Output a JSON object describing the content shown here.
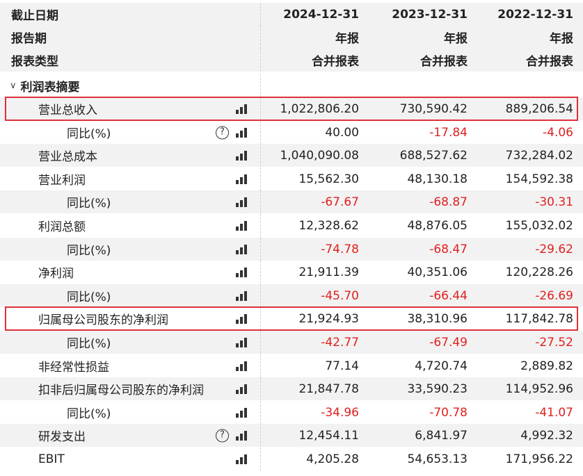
{
  "header": {
    "rows": [
      {
        "label": "截止日期",
        "values": [
          "2024-12-31",
          "2023-12-31",
          "2022-12-31"
        ]
      },
      {
        "label": "报告期",
        "values": [
          "年报",
          "年报",
          "年报"
        ]
      },
      {
        "label": "报表类型",
        "values": [
          "合并报表",
          "合并报表",
          "合并报表"
        ]
      }
    ]
  },
  "section": {
    "chevron": "∨",
    "title": "利润表摘要"
  },
  "rows": [
    {
      "label": "营业总收入",
      "level": 1,
      "help": false,
      "highlight": true,
      "values": [
        "1,022,806.20",
        "730,590.42",
        "889,206.54"
      ]
    },
    {
      "label": "同比(%)",
      "level": 2,
      "help": true,
      "help_text": "?",
      "values": [
        "40.00",
        "-17.84",
        "-4.06"
      ]
    },
    {
      "label": "营业总成本",
      "level": 1,
      "values": [
        "1,040,090.08",
        "688,527.62",
        "732,284.02"
      ]
    },
    {
      "label": "营业利润",
      "level": 1,
      "values": [
        "15,562.30",
        "48,130.18",
        "154,592.38"
      ]
    },
    {
      "label": "同比(%)",
      "level": 2,
      "values": [
        "-67.67",
        "-68.87",
        "-30.31"
      ]
    },
    {
      "label": "利润总额",
      "level": 1,
      "values": [
        "12,328.62",
        "48,876.05",
        "155,032.02"
      ]
    },
    {
      "label": "同比(%)",
      "level": 2,
      "values": [
        "-74.78",
        "-68.47",
        "-29.62"
      ]
    },
    {
      "label": "净利润",
      "level": 1,
      "values": [
        "21,911.39",
        "40,351.06",
        "120,228.26"
      ]
    },
    {
      "label": "同比(%)",
      "level": 2,
      "values": [
        "-45.70",
        "-66.44",
        "-26.69"
      ]
    },
    {
      "label": "归属母公司股东的净利润",
      "level": 1,
      "highlight": true,
      "values": [
        "21,924.93",
        "38,310.96",
        "117,842.78"
      ]
    },
    {
      "label": "同比(%)",
      "level": 2,
      "values": [
        "-42.77",
        "-67.49",
        "-27.52"
      ]
    },
    {
      "label": "非经常性损益",
      "level": 1,
      "values": [
        "77.14",
        "4,720.74",
        "2,889.82"
      ]
    },
    {
      "label": "扣非后归属母公司股东的净利润",
      "level": 1,
      "values": [
        "21,847.78",
        "33,590.23",
        "114,952.96"
      ]
    },
    {
      "label": "同比(%)",
      "level": 2,
      "values": [
        "-34.96",
        "-70.78",
        "-41.07"
      ]
    },
    {
      "label": "研发支出",
      "level": 1,
      "help": true,
      "help_text": "?",
      "values": [
        "12,454.11",
        "6,841.97",
        "4,992.32"
      ]
    },
    {
      "label": "EBIT",
      "level": 1,
      "values": [
        "4,205.28",
        "54,653.13",
        "171,956.22"
      ]
    }
  ],
  "icons": {
    "chart": "bar-chart-icon",
    "help": "question-circle-icon"
  },
  "colors": {
    "negative": "#e02020",
    "highlight": "#e0303a",
    "stripe": "#f2f2f2"
  }
}
